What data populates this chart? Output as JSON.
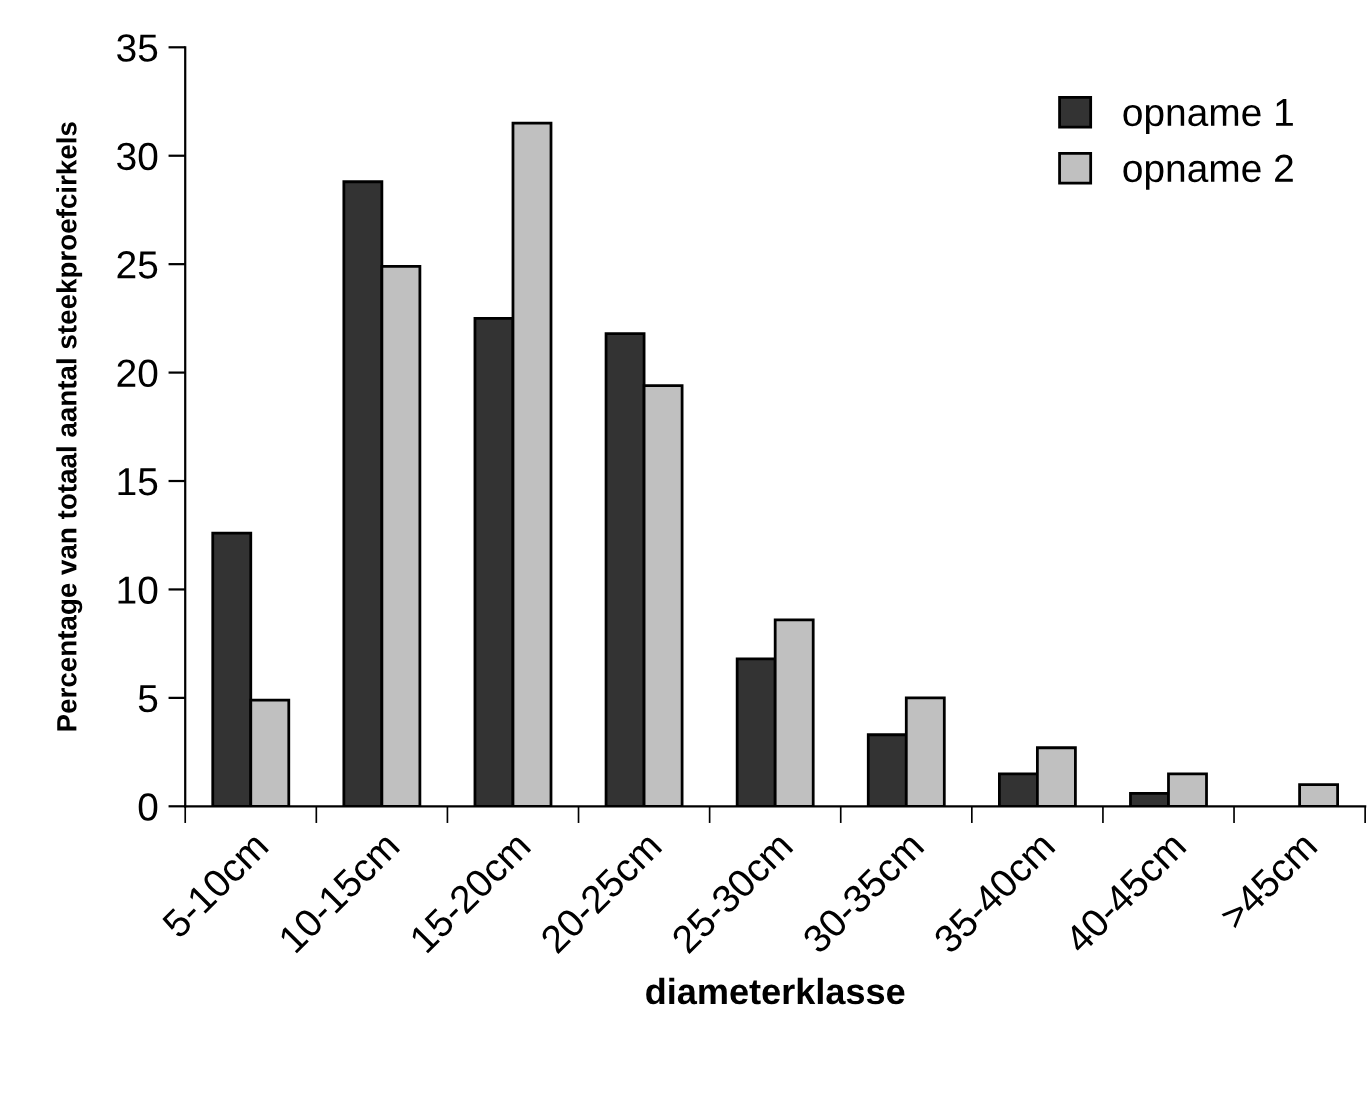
{
  "chart_data": {
    "type": "bar",
    "xlabel": "diameterklasse",
    "ylabel": "Percentage van totaal aantal steekproefcirkels",
    "categories": [
      "5-10cm",
      "10-15cm",
      "15-20cm",
      "20-25cm",
      "25-30cm",
      "30-35cm",
      "35-40cm",
      "40-45cm",
      ">45cm"
    ],
    "series": [
      {
        "name": "opname 1",
        "color": "#333333",
        "values": [
          12.6,
          28.8,
          22.5,
          21.8,
          6.8,
          3.3,
          1.5,
          0.6,
          null
        ]
      },
      {
        "name": "opname 2",
        "color": "#c0c0c0",
        "values": [
          4.9,
          24.9,
          31.5,
          19.4,
          8.6,
          5.0,
          2.7,
          1.5,
          1.0
        ]
      }
    ],
    "ylim": [
      0,
      35
    ],
    "yticks": [
      0,
      5,
      10,
      15,
      20,
      25,
      30,
      35
    ],
    "grid": false,
    "legend": "top right"
  }
}
